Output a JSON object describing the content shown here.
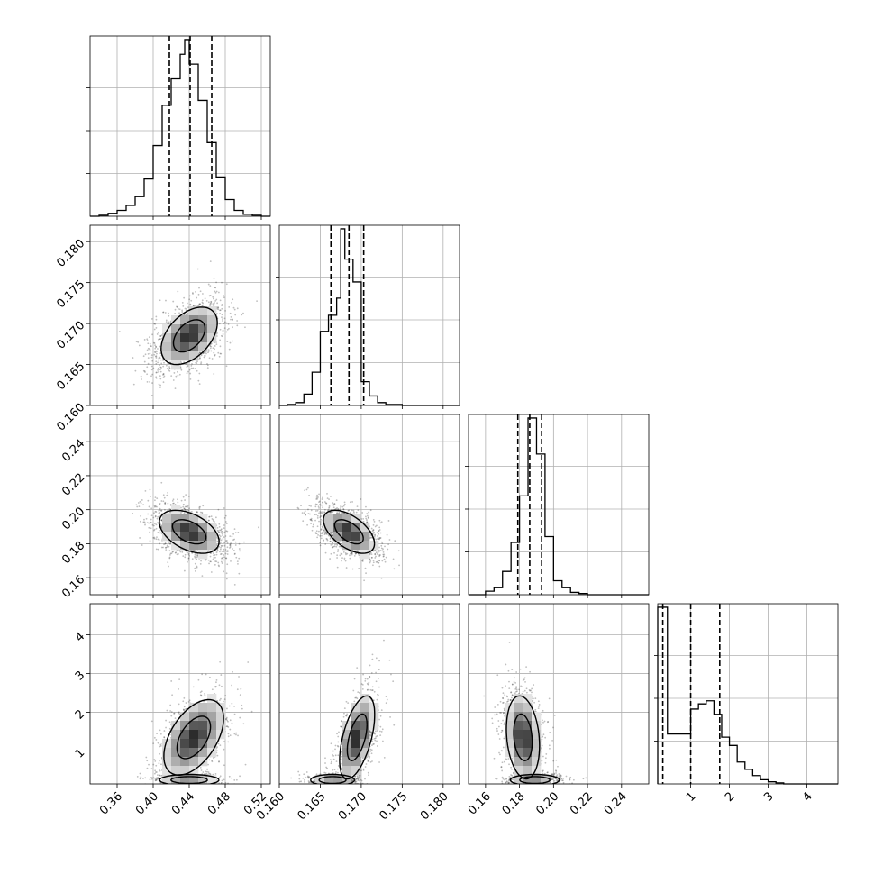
{
  "chart_data": {
    "type": "corner",
    "params": [
      {
        "ticks": [
          0.36,
          0.4,
          0.44,
          0.48,
          0.52
        ],
        "tick_labels": [
          "0.36",
          "0.40",
          "0.44",
          "0.48",
          "0.52"
        ],
        "range": [
          0.33,
          0.53
        ],
        "quantiles": [
          0.418,
          0.441,
          0.465
        ]
      },
      {
        "ticks": [
          0.16,
          0.165,
          0.17,
          0.175,
          0.18
        ],
        "tick_labels": [
          "0.160",
          "0.165",
          "0.170",
          "0.175",
          "0.180"
        ],
        "range": [
          0.16,
          0.182
        ],
        "quantiles": [
          0.1663,
          0.1685,
          0.1703
        ]
      },
      {
        "ticks": [
          0.16,
          0.18,
          0.2,
          0.22,
          0.24
        ],
        "tick_labels": [
          "0.16",
          "0.18",
          "0.20",
          "0.22",
          "0.24"
        ],
        "range": [
          0.15,
          0.256
        ],
        "quantiles": [
          0.179,
          0.186,
          0.193
        ]
      },
      {
        "ticks": [
          1,
          2,
          3,
          4
        ],
        "tick_labels": [
          "1",
          "2",
          "3",
          "4"
        ],
        "range": [
          0.15,
          4.8
        ],
        "quantiles": [
          0.28,
          1.0,
          1.75
        ]
      }
    ],
    "histograms": [
      {
        "edges": [
          0.33,
          0.34,
          0.35,
          0.36,
          0.37,
          0.38,
          0.39,
          0.4,
          0.41,
          0.42,
          0.43,
          0.435,
          0.44,
          0.45,
          0.46,
          0.47,
          0.48,
          0.49,
          0.5,
          0.51,
          0.52,
          0.53
        ],
        "counts": [
          0,
          1,
          3,
          6,
          11,
          20,
          38,
          72,
          113,
          140,
          165,
          180,
          155,
          118,
          75,
          40,
          17,
          6,
          2,
          1,
          0
        ]
      },
      {
        "edges": [
          0.16,
          0.161,
          0.162,
          0.163,
          0.164,
          0.165,
          0.166,
          0.167,
          0.1675,
          0.168,
          0.169,
          0.17,
          0.171,
          0.172,
          0.173,
          0.174,
          0.175,
          0.176,
          0.178,
          0.182
        ],
        "counts": [
          0,
          1,
          3,
          12,
          35,
          78,
          95,
          113,
          186,
          154,
          130,
          25,
          10,
          3,
          1,
          1,
          0,
          0,
          0
        ]
      },
      {
        "edges": [
          0.15,
          0.16,
          0.165,
          0.17,
          0.175,
          0.18,
          0.185,
          0.19,
          0.195,
          0.2,
          0.205,
          0.21,
          0.215,
          0.22,
          0.23,
          0.256
        ],
        "counts": [
          0,
          3,
          6,
          20,
          45,
          85,
          152,
          121,
          50,
          12,
          6,
          2,
          1,
          0,
          0
        ]
      },
      {
        "edges": [
          0.15,
          0.4,
          0.8,
          1.0,
          1.2,
          1.4,
          1.6,
          1.8,
          2.0,
          2.2,
          2.4,
          2.6,
          2.8,
          3.0,
          3.2,
          3.4,
          4.8
        ],
        "counts": [
          170,
          48,
          48,
          72,
          77,
          80,
          67,
          45,
          37,
          21,
          14,
          8,
          4,
          2,
          1,
          0
        ]
      }
    ],
    "densities": [
      {
        "x": 1,
        "y": 0,
        "blobs": [
          {
            "cx": 0.44,
            "cy": 0.1685,
            "sx": 0.016,
            "sy": 0.0018,
            "rho": 0.45,
            "w": 1
          }
        ],
        "levels": [
          2.6,
          1.6,
          0.75,
          0.27
        ]
      },
      {
        "x": 2,
        "y": 0,
        "blobs": [
          {
            "cx": 0.44,
            "cy": 0.187,
            "sx": 0.017,
            "sy": 0.0065,
            "rho": -0.45,
            "w": 1
          }
        ],
        "levels": [
          2.6,
          1.6,
          0.75,
          0.27
        ]
      },
      {
        "x": 2,
        "y": 1,
        "blobs": [
          {
            "cx": 0.1685,
            "cy": 0.187,
            "sx": 0.0016,
            "sy": 0.0065,
            "rho": -0.55,
            "w": 1
          }
        ],
        "levels": [
          2.6,
          1.6,
          0.75,
          0.27
        ]
      },
      {
        "x": 3,
        "y": 0,
        "blobs": [
          {
            "cx": 0.445,
            "cy": 1.35,
            "sx": 0.017,
            "sy": 0.5,
            "rho": 0.5,
            "w": 1.0
          },
          {
            "cx": 0.44,
            "cy": 0.25,
            "sx": 0.016,
            "sy": 0.07,
            "rho": 0,
            "w": 0.45
          }
        ],
        "levels": [
          1.9,
          1.2,
          0.55,
          0.2
        ]
      },
      {
        "x": 3,
        "y": 1,
        "blobs": [
          {
            "cx": 0.1695,
            "cy": 1.35,
            "sx": 0.0011,
            "sy": 0.55,
            "rho": 0.55,
            "w": 1.0
          },
          {
            "cx": 0.1665,
            "cy": 0.25,
            "sx": 0.0013,
            "sy": 0.07,
            "rho": 0,
            "w": 0.45
          }
        ],
        "levels": [
          1.9,
          1.2,
          0.55,
          0.2
        ]
      },
      {
        "x": 3,
        "y": 2,
        "blobs": [
          {
            "cx": 0.182,
            "cy": 1.35,
            "sx": 0.005,
            "sy": 0.55,
            "rho": -0.2,
            "w": 1.0
          },
          {
            "cx": 0.189,
            "cy": 0.25,
            "sx": 0.007,
            "sy": 0.07,
            "rho": 0,
            "w": 0.45
          }
        ],
        "levels": [
          1.9,
          1.2,
          0.55,
          0.2
        ]
      }
    ],
    "grid": true
  }
}
